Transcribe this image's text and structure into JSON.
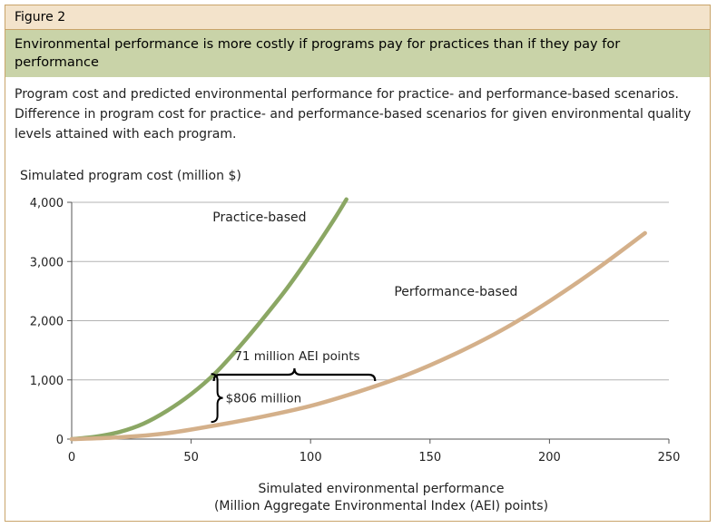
{
  "figure_label": "Figure 2",
  "headline": "Environmental performance is more costly if programs pay for practices than if they pay for performance",
  "description": "Program cost and predicted environmental performance for practice- and performance-based scenarios. Difference in program cost for practice- and performance-based scenarios for given environmental quality levels attained with each program.",
  "colors": {
    "frame_border": "#c9a46a",
    "label_bg": "#f3e3cb",
    "headline_bg": "#c9d3a8",
    "practice": "#8ba764",
    "performance": "#d4b08a",
    "grid": "#b3b3b3"
  },
  "chart_data": {
    "type": "line",
    "title": "",
    "ylabel": "Simulated program cost (million $)",
    "xlabel_line1": "Simulated environmental performance",
    "xlabel_line2": "(Million Aggregate Environmental Index (AEI) points)",
    "xlim": [
      0,
      250
    ],
    "ylim": [
      0,
      4000
    ],
    "x_ticks": [
      0,
      50,
      100,
      150,
      200,
      250
    ],
    "x_tick_labels": [
      "0",
      "50",
      "100",
      "150",
      "200",
      "250"
    ],
    "y_ticks": [
      0,
      1000,
      2000,
      3000,
      4000
    ],
    "y_tick_labels": [
      "0",
      "1,000",
      "2,000",
      "3,000",
      "4,000"
    ],
    "grid": true,
    "series": [
      {
        "name": "Practice-based",
        "color": "#8ba764",
        "x": [
          0,
          10,
          20,
          30,
          40,
          50,
          60,
          70,
          80,
          90,
          100,
          110,
          115
        ],
        "y": [
          0,
          40,
          120,
          260,
          480,
          760,
          1110,
          1550,
          2030,
          2540,
          3110,
          3720,
          4050
        ]
      },
      {
        "name": "Performance-based",
        "color": "#d4b08a",
        "x": [
          0,
          20,
          40,
          60,
          80,
          100,
          120,
          140,
          160,
          180,
          200,
          220,
          240
        ],
        "y": [
          0,
          30,
          100,
          230,
          380,
          560,
          800,
          1080,
          1430,
          1840,
          2330,
          2880,
          3480
        ]
      }
    ],
    "annotations": {
      "horizontal_gap_label": "71 million AEI points",
      "horizontal_gap_x": [
        59.5,
        127
      ],
      "horizontal_gap_y": 1150,
      "vertical_gap_label": "$806 million",
      "vertical_gap_x": 59.5,
      "vertical_gap_y": [
        290,
        1100
      ]
    }
  }
}
